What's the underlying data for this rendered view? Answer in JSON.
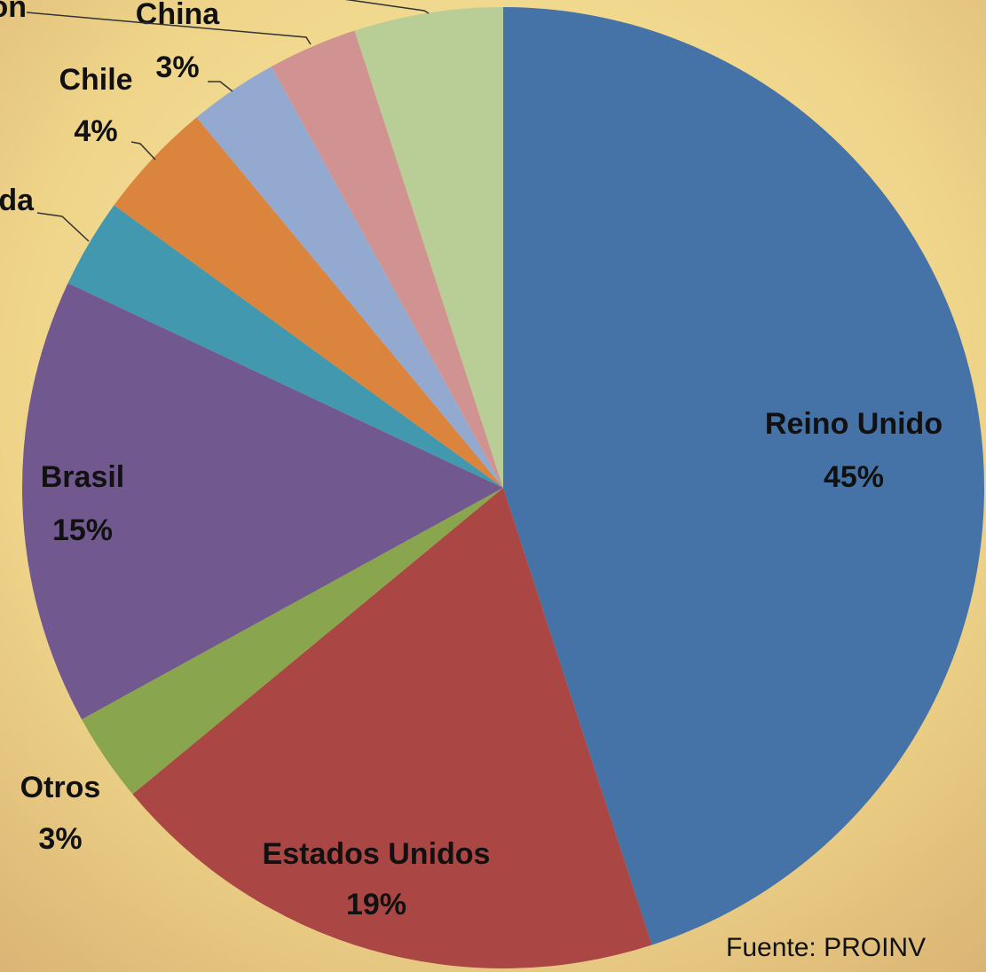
{
  "chart_data": {
    "type": "pie",
    "categories": [
      "Reino Unido",
      "Estados Unidos",
      "Otros",
      "Brasil",
      "da",
      "Chile",
      "China",
      "on",
      null
    ],
    "values": [
      45,
      19,
      3,
      15,
      3,
      4,
      3,
      3,
      5
    ],
    "value_labels": [
      "45%",
      "19%",
      "3%",
      "15%",
      null,
      "4%",
      "3%",
      null,
      null
    ],
    "colors": [
      "#4572a7",
      "#aa4643",
      "#89a54e",
      "#71588f",
      "#4198af",
      "#db843d",
      "#93a9cf",
      "#d19392",
      "#b9cd96"
    ],
    "note": "Fuente: PROINV"
  }
}
